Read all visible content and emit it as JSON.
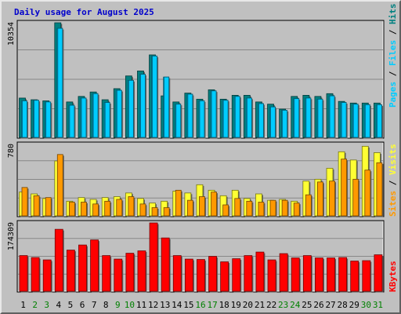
{
  "title": "Daily usage for August 2025",
  "colors": {
    "title": "#0000cc",
    "hits": "#008080",
    "files": "#00ccff",
    "pages": "#00ccff",
    "visits": "#ffff33",
    "sites": "#ff9900",
    "kbytes": "#ff0000",
    "weekend_label": "#008000",
    "weekday_label": "#000000",
    "panel_bg": "#c0c0c0",
    "grid": "#888888"
  },
  "legend": {
    "top": [
      "Hits",
      "Files",
      "Pages"
    ],
    "middle": [
      "Visits",
      "Sites"
    ],
    "bottom": [
      "KBytes"
    ],
    "separator": " / "
  },
  "chart_data": {
    "type": "bar",
    "title": "Daily usage for August 2025",
    "categories": [
      "1",
      "2",
      "3",
      "4",
      "5",
      "6",
      "7",
      "8",
      "9",
      "10",
      "11",
      "12",
      "13",
      "14",
      "15",
      "16",
      "17",
      "18",
      "19",
      "20",
      "21",
      "22",
      "23",
      "24",
      "25",
      "26",
      "27",
      "28",
      "29",
      "30",
      "31"
    ],
    "weekend_days": [
      "2",
      "3",
      "9",
      "10",
      "16",
      "17",
      "23",
      "24",
      "30",
      "31"
    ],
    "panels": [
      {
        "name": "hits-files-pages",
        "ymax_label": "10354",
        "ymax": 10354,
        "series": [
          {
            "name": "Hits",
            "values": [
              3550,
              3400,
              3300,
              10354,
              3200,
              3700,
              4100,
              3400,
              4400,
              5550,
              6000,
              7450,
              3750,
              3200,
              4000,
              3450,
              4300,
              3450,
              3800,
              3800,
              3200,
              3000,
              2550,
              3700,
              3800,
              3700,
              3950,
              3250,
              3100,
              3100,
              3100
            ]
          },
          {
            "name": "Files",
            "values": [
              3300,
              3350,
              3200,
              9850,
              2900,
              3550,
              3950,
              3150,
              4250,
              5150,
              5700,
              7350,
              5450,
              3000,
              3900,
              3300,
              4200,
              3350,
              3700,
              3550,
              3050,
              2750,
              2450,
              3500,
              3550,
              3450,
              3750,
              3150,
              3000,
              2950,
              2950
            ]
          },
          {
            "name": "Pages",
            "values": [
              3300,
              3350,
              3200,
              9850,
              2900,
              3550,
              3950,
              3150,
              4250,
              5150,
              5700,
              7350,
              5450,
              3000,
              3900,
              3300,
              4200,
              3350,
              3700,
              3550,
              3050,
              2750,
              2450,
              3500,
              3550,
              3450,
              3750,
              3150,
              3000,
              2950,
              2950
            ]
          }
        ]
      },
      {
        "name": "visits-sites",
        "ymax_label": "780",
        "ymax": 780,
        "series": [
          {
            "name": "Visits",
            "values": [
              260,
              240,
              190,
              600,
              160,
              200,
              180,
              200,
              210,
              250,
              190,
              140,
              160,
              270,
              250,
              340,
              280,
              220,
              280,
              190,
              240,
              170,
              180,
              160,
              380,
              400,
              520,
              700,
              610,
              760,
              690
            ]
          },
          {
            "name": "Sites",
            "values": [
              310,
              220,
              200,
              670,
              150,
              150,
              130,
              160,
              180,
              210,
              130,
              90,
              90,
              280,
              170,
              210,
              260,
              120,
              190,
              160,
              150,
              170,
              170,
              140,
              230,
              370,
              380,
              620,
              400,
              500,
              580
            ]
          }
        ]
      },
      {
        "name": "kbytes",
        "ymax_label": "174309",
        "ymax": 174309,
        "series": [
          {
            "name": "KBytes",
            "values": [
              91000,
              86000,
              80000,
              158000,
              105000,
              118000,
              131000,
              91000,
              82000,
              97000,
              103000,
              174309,
              136000,
              91000,
              82000,
              81000,
              89000,
              75000,
              83000,
              91000,
              100000,
              80000,
              96000,
              85000,
              91000,
              85000,
              85000,
              86000,
              77000,
              78000,
              93000
            ]
          }
        ]
      }
    ]
  }
}
